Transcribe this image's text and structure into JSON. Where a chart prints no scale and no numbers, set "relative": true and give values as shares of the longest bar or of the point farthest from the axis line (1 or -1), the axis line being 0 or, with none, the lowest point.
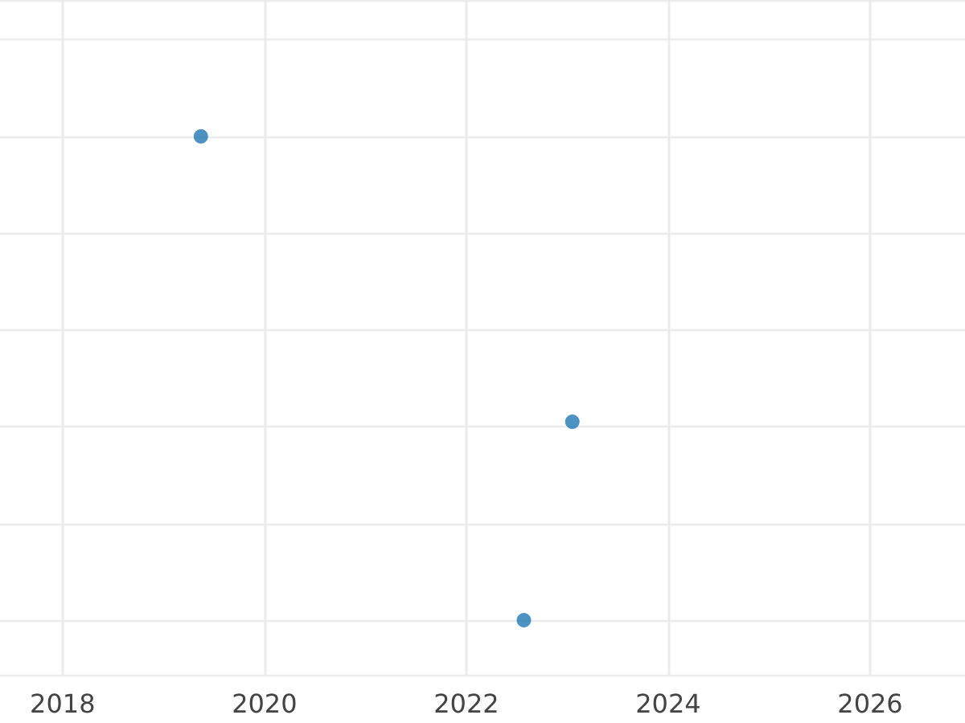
{
  "chart_data": {
    "type": "scatter",
    "relative": true,
    "x": [
      2019.37,
      2023.05,
      2022.57
    ],
    "values": [
      1,
      0.41,
      0
    ],
    "color": "#1f77b4",
    "marker": "circle",
    "xlim": [
      2017.38,
      2026.94
    ],
    "xticks": [
      2018,
      2020,
      2022,
      2024,
      2026
    ],
    "grid": true,
    "tick_labels": "x"
  }
}
